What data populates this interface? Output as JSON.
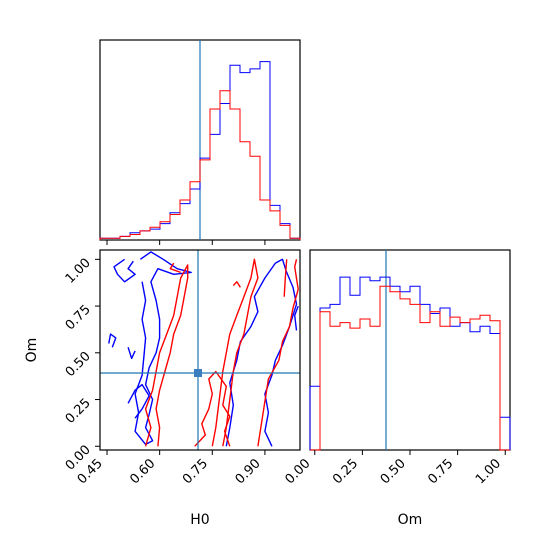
{
  "chart_data": [
    {
      "type": "histogram",
      "panel": "H0 marginal",
      "xlim": [
        0.43,
        1.0
      ],
      "truth": 0.72,
      "bins": [
        0.43,
        0.4585,
        0.487,
        0.5155,
        0.544,
        0.5725,
        0.601,
        0.6295,
        0.658,
        0.6865,
        0.715,
        0.7435,
        0.772,
        0.8005,
        0.829,
        0.8575,
        0.886,
        0.9145,
        0.943,
        0.9715,
        1.0
      ],
      "series": [
        {
          "color": "#0000ff",
          "counts": [
            1,
            1,
            2,
            4,
            5,
            6,
            9,
            15,
            20,
            28,
            45,
            58,
            75,
            96,
            92,
            94,
            98,
            19,
            9,
            1
          ]
        },
        {
          "color": "#ff0000",
          "counts": [
            1,
            1,
            2,
            3,
            5,
            7,
            10,
            14,
            22,
            32,
            44,
            72,
            82,
            72,
            54,
            46,
            22,
            16,
            8,
            1
          ]
        }
      ]
    },
    {
      "type": "contour",
      "panel": "H0 vs Om",
      "xlabel": "H0",
      "ylabel": "Om",
      "xlim": [
        0.43,
        1.0
      ],
      "ylim": [
        -0.02,
        1.05
      ],
      "xticks": [
        "0.45",
        "0.60",
        "0.75",
        "0.90"
      ],
      "yticks": [
        "0.00",
        "0.25",
        "0.50",
        "0.75",
        "1.00"
      ],
      "truth": [
        0.72,
        0.38
      ],
      "series": [
        {
          "color": "#0000ff",
          "contours": [
            [
              [
                0.545,
                1.0
              ],
              [
                0.575,
                1.04
              ],
              [
                0.61,
                1.0
              ],
              [
                0.65,
                0.95
              ],
              [
                0.69,
                0.93
              ],
              [
                0.64,
                0.92
              ],
              [
                0.595,
                0.95
              ],
              [
                0.575,
                0.88
              ],
              [
                0.59,
                0.78
              ],
              [
                0.6,
                0.68
              ],
              [
                0.6,
                0.58
              ],
              [
                0.59,
                0.5
              ],
              [
                0.57,
                0.42
              ],
              [
                0.56,
                0.33
              ],
              [
                0.58,
                0.25
              ],
              [
                0.57,
                0.17
              ],
              [
                0.56,
                0.1
              ],
              [
                0.58,
                0.03
              ],
              [
                0.56,
                0.01
              ],
              [
                0.53,
                0.08
              ],
              [
                0.54,
                0.18
              ],
              [
                0.53,
                0.28
              ],
              [
                0.55,
                0.38
              ],
              [
                0.555,
                0.48
              ],
              [
                0.56,
                0.58
              ],
              [
                0.55,
                0.68
              ],
              [
                0.56,
                0.78
              ],
              [
                0.55,
                0.88
              ]
            ],
            [
              [
                0.525,
                0.99
              ],
              [
                0.51,
                0.95
              ],
              [
                0.53,
                0.92
              ],
              [
                0.5,
                0.88
              ],
              [
                0.48,
                0.92
              ],
              [
                0.47,
                0.96
              ],
              [
                0.5,
                1.0
              ]
            ],
            [
              [
                0.455,
                0.55
              ],
              [
                0.46,
                0.6
              ],
              [
                0.475,
                0.58
              ],
              [
                0.465,
                0.53
              ]
            ],
            [
              [
                0.51,
                0.53
              ],
              [
                0.52,
                0.47
              ],
              [
                0.53,
                0.51
              ]
            ],
            [
              [
                0.51,
                0.23
              ],
              [
                0.53,
                0.3
              ],
              [
                0.55,
                0.33
              ],
              [
                0.57,
                0.27
              ],
              [
                0.55,
                0.2
              ],
              [
                0.53,
                0.15
              ]
            ],
            [
              [
                0.79,
                0.0
              ],
              [
                0.8,
                0.1
              ],
              [
                0.81,
                0.22
              ],
              [
                0.8,
                0.34
              ],
              [
                0.82,
                0.46
              ],
              [
                0.83,
                0.56
              ],
              [
                0.86,
                0.64
              ],
              [
                0.88,
                0.72
              ],
              [
                0.87,
                0.8
              ],
              [
                0.9,
                0.9
              ],
              [
                0.93,
                0.98
              ],
              [
                0.95,
                1.0
              ],
              [
                0.96,
                0.94
              ],
              [
                0.98,
                0.85
              ],
              [
                0.99,
                0.76
              ],
              [
                0.97,
                0.64
              ],
              [
                0.95,
                0.54
              ],
              [
                0.93,
                0.46
              ],
              [
                0.92,
                0.38
              ],
              [
                0.9,
                0.28
              ],
              [
                0.91,
                0.18
              ],
              [
                0.9,
                0.08
              ],
              [
                0.92,
                0.0
              ]
            ],
            [
              [
                0.995,
                0.75
              ],
              [
                0.985,
                0.7
              ],
              [
                0.99,
                0.62
              ]
            ]
          ]
        },
        {
          "color": "#ff0000",
          "contours": [
            [
              [
                0.56,
                0.0
              ],
              [
                0.575,
                0.1
              ],
              [
                0.56,
                0.2
              ],
              [
                0.58,
                0.3
              ],
              [
                0.59,
                0.4
              ],
              [
                0.6,
                0.5
              ],
              [
                0.62,
                0.6
              ],
              [
                0.64,
                0.7
              ],
              [
                0.65,
                0.8
              ],
              [
                0.66,
                0.9
              ],
              [
                0.68,
                0.97
              ],
              [
                0.68,
                0.9
              ],
              [
                0.67,
                0.8
              ],
              [
                0.66,
                0.7
              ],
              [
                0.64,
                0.6
              ],
              [
                0.63,
                0.5
              ],
              [
                0.615,
                0.4
              ],
              [
                0.6,
                0.3
              ],
              [
                0.59,
                0.2
              ],
              [
                0.6,
                0.1
              ],
              [
                0.595,
                0.0
              ]
            ],
            [
              [
                0.64,
                0.98
              ],
              [
                0.63,
                0.95
              ],
              [
                0.66,
                0.93
              ]
            ],
            [
              [
                0.7,
                0.0
              ],
              [
                0.73,
                0.06
              ],
              [
                0.72,
                0.12
              ],
              [
                0.74,
                0.2
              ],
              [
                0.75,
                0.28
              ],
              [
                0.74,
                0.36
              ],
              [
                0.76,
                0.4
              ],
              [
                0.79,
                0.32
              ],
              [
                0.78,
                0.22
              ],
              [
                0.8,
                0.16
              ],
              [
                0.785,
                0.08
              ],
              [
                0.8,
                0.0
              ]
            ],
            [
              [
                0.75,
                0.0
              ],
              [
                0.76,
                0.1
              ],
              [
                0.77,
                0.25
              ],
              [
                0.78,
                0.4
              ],
              [
                0.79,
                0.5
              ],
              [
                0.8,
                0.6
              ],
              [
                0.82,
                0.7
              ],
              [
                0.84,
                0.8
              ],
              [
                0.86,
                0.9
              ],
              [
                0.87,
                1.0
              ],
              [
                0.88,
                0.9
              ],
              [
                0.86,
                0.8
              ],
              [
                0.85,
                0.7
              ],
              [
                0.84,
                0.6
              ],
              [
                0.82,
                0.5
              ],
              [
                0.81,
                0.4
              ],
              [
                0.8,
                0.25
              ],
              [
                0.79,
                0.1
              ],
              [
                0.78,
                0.0
              ]
            ],
            [
              [
                0.88,
                0.0
              ],
              [
                0.89,
                0.12
              ],
              [
                0.9,
                0.24
              ],
              [
                0.91,
                0.36
              ],
              [
                0.94,
                0.46
              ],
              [
                0.95,
                0.56
              ],
              [
                0.97,
                0.64
              ],
              [
                0.98,
                0.74
              ],
              [
                0.995,
                0.84
              ],
              [
                0.985,
                0.96
              ],
              [
                0.99,
                1.0
              ]
            ],
            [
              [
                0.962,
                1.0
              ],
              [
                0.958,
                0.9
              ],
              [
                0.955,
                0.8
              ]
            ],
            [
              [
                0.81,
                0.86
              ],
              [
                0.82,
                0.88
              ],
              [
                0.83,
                0.85
              ]
            ]
          ]
        }
      ]
    },
    {
      "type": "histogram",
      "panel": "Om marginal",
      "xlabel": "Om",
      "xlim": [
        -0.025,
        1.025
      ],
      "xticks": [
        "0.00",
        "0.25",
        "0.50",
        "0.75",
        "1.00"
      ],
      "truth": 0.38,
      "bins": [
        -0.025,
        0.0275,
        0.08,
        0.1325,
        0.185,
        0.2375,
        0.29,
        0.3425,
        0.395,
        0.4475,
        0.5,
        0.5525,
        0.605,
        0.6575,
        0.71,
        0.7625,
        0.815,
        0.8675,
        0.92,
        0.9725,
        1.025
      ],
      "series": [
        {
          "color": "#0000ff",
          "counts": [
            35,
            78,
            80,
            95,
            85,
            95,
            93,
            95,
            90,
            87,
            90,
            80,
            75,
            78,
            68,
            70,
            65,
            68,
            64,
            18
          ]
        },
        {
          "color": "#ff0000",
          "counts": [
            0,
            76,
            68,
            70,
            67,
            72,
            68,
            90,
            87,
            83,
            80,
            70,
            76,
            68,
            73,
            70,
            72,
            74,
            71,
            0
          ]
        }
      ]
    }
  ]
}
